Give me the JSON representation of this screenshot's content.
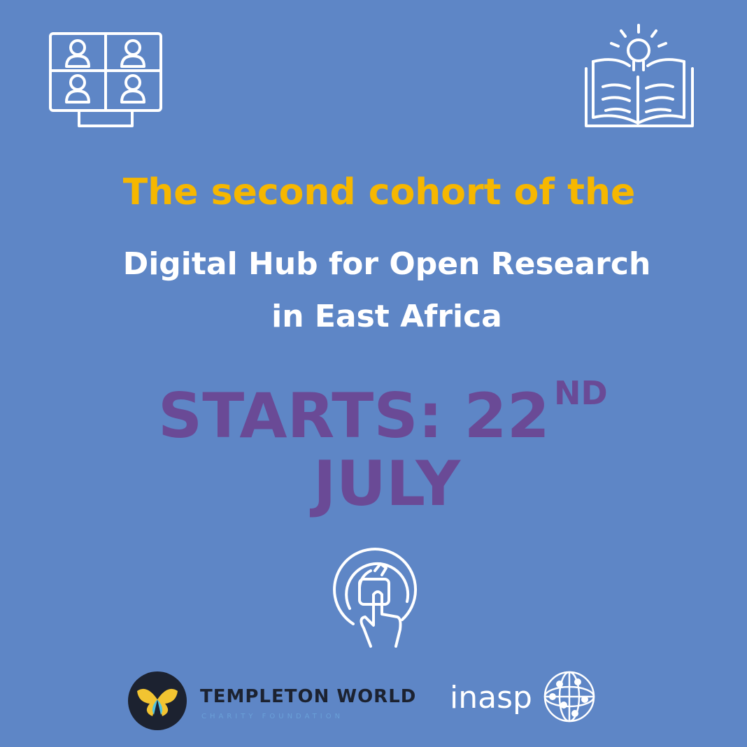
{
  "headline": "The second cohort of the",
  "program": {
    "line1": "Digital Hub for Open Research",
    "line2": "in East Africa"
  },
  "start": {
    "prefix": "STARTS: 22",
    "suffix": "ND",
    "month": "JULY"
  },
  "logos": {
    "templeton": {
      "name": "TEMPLETON WORLD",
      "tagline": "CHARITY FOUNDATION"
    },
    "inasp": "inasp"
  }
}
